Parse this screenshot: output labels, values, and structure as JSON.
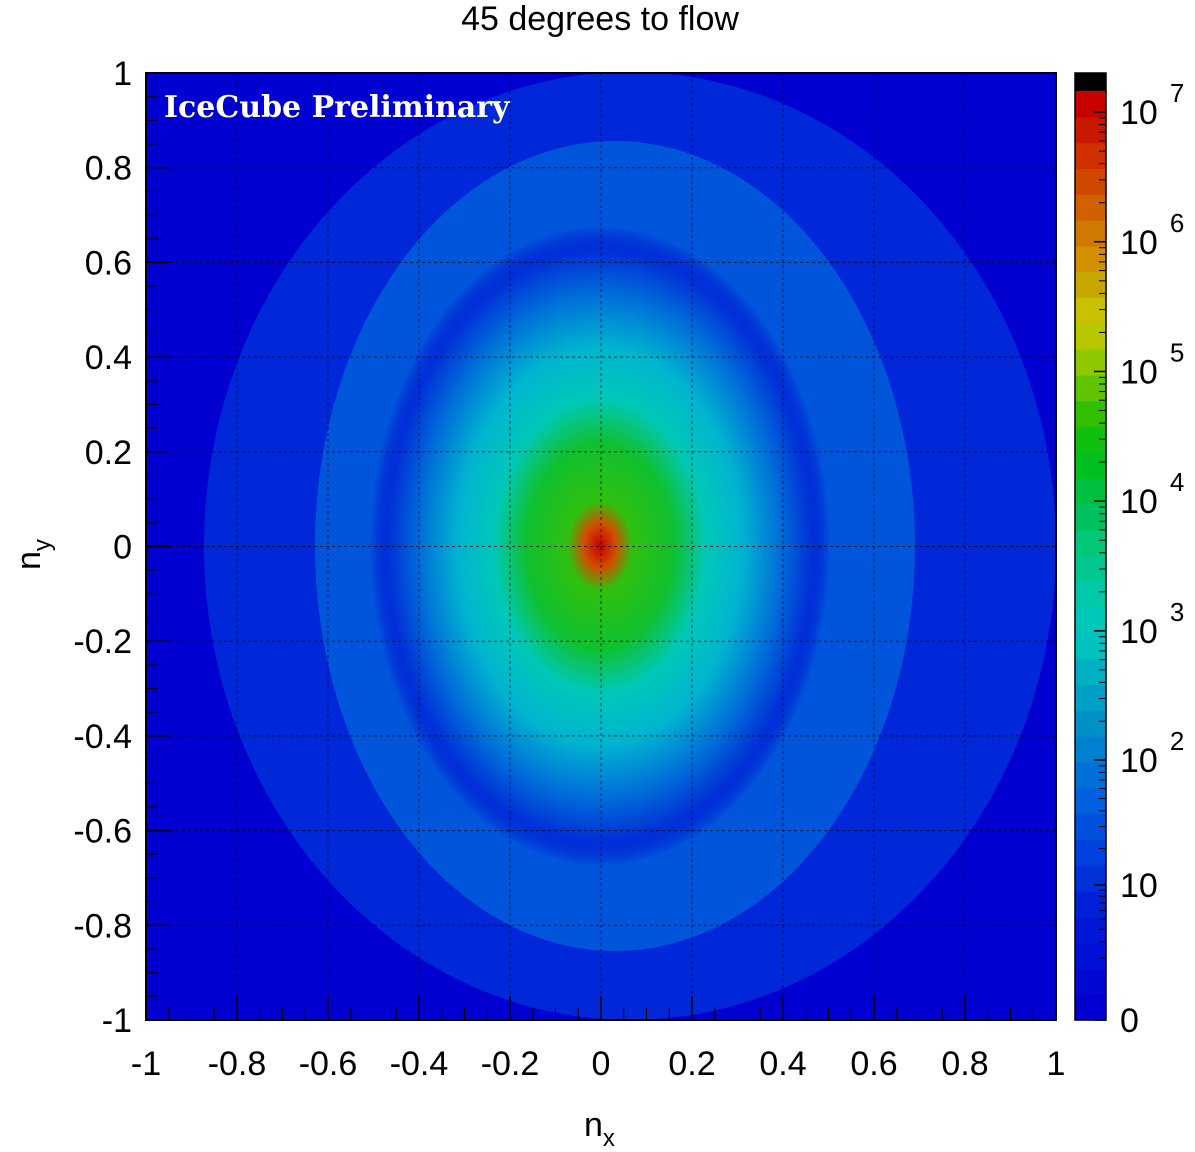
{
  "chart_data": {
    "type": "heatmap",
    "title": "45 degrees to flow",
    "xlabel": {
      "main": "n",
      "sub": "x"
    },
    "ylabel": {
      "main": "n",
      "sub": "y"
    },
    "xlim": [
      -1,
      1
    ],
    "ylim": [
      -1,
      1
    ],
    "x_ticks": [
      "-1",
      "-0.8",
      "-0.6",
      "-0.4",
      "-0.2",
      "0",
      "0.2",
      "0.4",
      "0.6",
      "0.8",
      "1"
    ],
    "y_ticks": [
      "-1",
      "-0.8",
      "-0.6",
      "-0.4",
      "-0.2",
      "0",
      "0.2",
      "0.4",
      "0.6",
      "0.8",
      "1"
    ],
    "grid": true,
    "annotation": "IceCube Preliminary",
    "colorbar": {
      "scale": "log",
      "range": [
        0,
        20000000
      ],
      "tick_labels": [
        {
          "base": "0",
          "exp": "",
          "value": 0
        },
        {
          "base": "10",
          "exp": "",
          "value": 10
        },
        {
          "base": "10",
          "exp": "2",
          "value": 100
        },
        {
          "base": "10",
          "exp": "3",
          "value": 1000
        },
        {
          "base": "10",
          "exp": "4",
          "value": 10000
        },
        {
          "base": "10",
          "exp": "5",
          "value": 100000
        },
        {
          "base": "10",
          "exp": "6",
          "value": 1000000
        },
        {
          "base": "10",
          "exp": "7",
          "value": 10000000
        }
      ]
    },
    "distribution": {
      "peak_center": [
        0,
        0
      ],
      "peak_value": 10000000,
      "background_value": 0,
      "envelope": "elliptical region roughly bounded by x in [-0.5, 1] and y in [-1, 1], brightest at origin, elongated along y"
    },
    "colors": {
      "background": "#0000d0",
      "low": "#0020d8",
      "cyan": "#00c8c0",
      "green": "#00c000",
      "yellow": "#c8c800",
      "orange": "#d08000",
      "red": "#c80000",
      "top": "#000000"
    }
  }
}
